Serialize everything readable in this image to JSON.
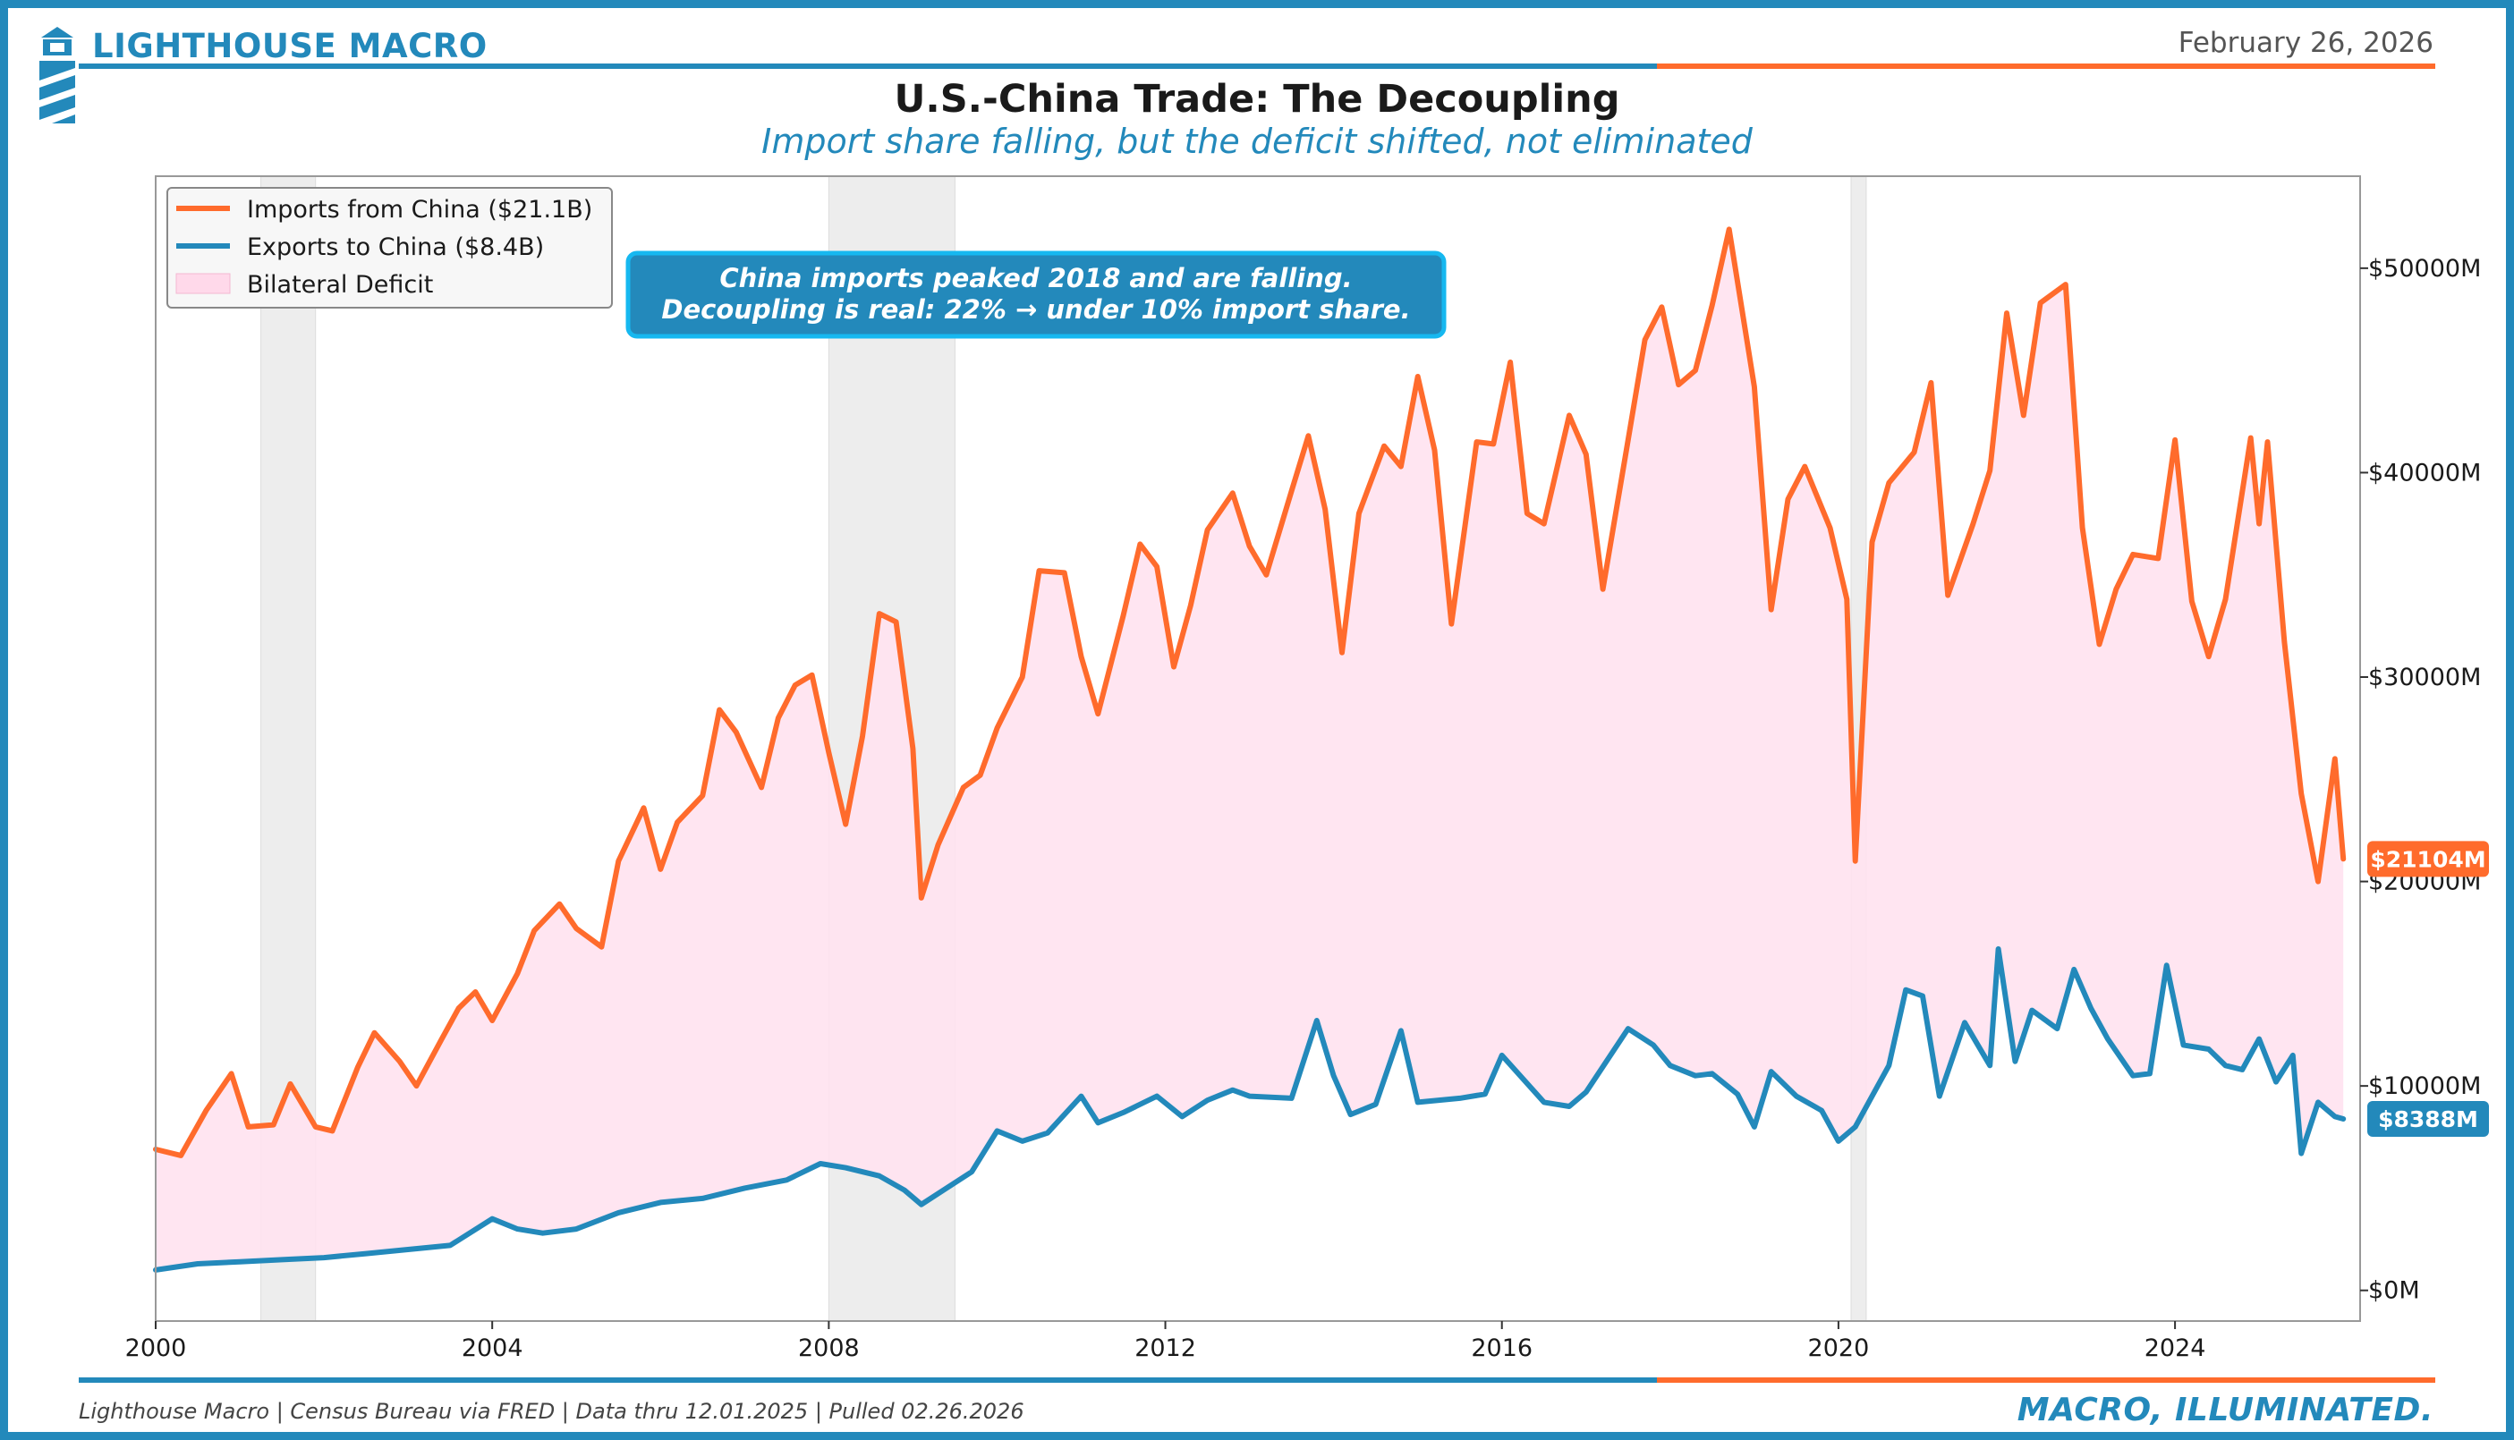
{
  "header": {
    "brand": "LIGHTHOUSE MACRO",
    "date": "February 26, 2026",
    "title": "U.S.-China Trade: The Decoupling",
    "subtitle": "Import share falling, but the deficit shifted, not eliminated"
  },
  "footer": {
    "source": "Lighthouse Macro | Census Bureau via FRED | Data thru 12.01.2025 | Pulled 02.26.2026",
    "tagline": "MACRO, ILLUMINATED."
  },
  "colors": {
    "brand_blue": "#2389bb",
    "brand_orange": "#ff6b2c",
    "deficit_fill": "#ffe2ef",
    "recession_band": "#e6e6e6",
    "annotation_bg": "#2389bb",
    "annotation_border": "#16b8f0"
  },
  "icons": {
    "logo": "lighthouse-icon"
  },
  "chart_data": {
    "type": "line",
    "title": "U.S.-China Trade: The Decoupling",
    "xlabel": "",
    "ylabel": "",
    "xlim": [
      2000,
      2026.2
    ],
    "ylim": [
      -1500,
      54500
    ],
    "x_ticks": [
      2000,
      2004,
      2008,
      2012,
      2016,
      2020,
      2024
    ],
    "y_ticks": [
      0,
      10000,
      20000,
      30000,
      40000,
      50000
    ],
    "y_tick_labels": [
      "$0M",
      "$10000M",
      "$20000M",
      "$30000M",
      "$40000M",
      "$50000M"
    ],
    "y_axis_side": "right",
    "grid": false,
    "legend_position": "top-left",
    "legend": [
      "Imports from China ($21.1B)",
      "Exports to China ($8.4B)",
      "Bilateral Deficit"
    ],
    "annotation": {
      "line1": "China imports peaked 2018 and are falling.",
      "line2": "Decoupling is real: 22% → under 10% import share.",
      "position": "top-left"
    },
    "recession_bands": [
      [
        2001.25,
        2001.9
      ],
      [
        2008.0,
        2009.5
      ],
      [
        2020.15,
        2020.33
      ]
    ],
    "end_labels": {
      "imports": "$21104M",
      "exports": "$8388M"
    },
    "series": [
      {
        "name": "Imports from China ($21.1B)",
        "color": "#ff6b2c",
        "x": [
          2000.0,
          2000.3,
          2000.6,
          2000.9,
          2001.1,
          2001.4,
          2001.6,
          2001.9,
          2002.1,
          2002.4,
          2002.6,
          2002.9,
          2003.1,
          2003.4,
          2003.6,
          2003.8,
          2004.0,
          2004.3,
          2004.5,
          2004.8,
          2005.0,
          2005.3,
          2005.5,
          2005.8,
          2006.0,
          2006.2,
          2006.5,
          2006.7,
          2006.9,
          2007.2,
          2007.4,
          2007.6,
          2007.8,
          2008.0,
          2008.2,
          2008.4,
          2008.6,
          2008.8,
          2009.0,
          2009.1,
          2009.3,
          2009.6,
          2009.8,
          2010.0,
          2010.3,
          2010.5,
          2010.8,
          2011.0,
          2011.2,
          2011.5,
          2011.7,
          2011.9,
          2012.1,
          2012.3,
          2012.5,
          2012.8,
          2013.0,
          2013.2,
          2013.5,
          2013.7,
          2013.9,
          2014.1,
          2014.3,
          2014.6,
          2014.8,
          2015.0,
          2015.2,
          2015.4,
          2015.7,
          2015.9,
          2016.1,
          2016.3,
          2016.5,
          2016.8,
          2017.0,
          2017.2,
          2017.5,
          2017.7,
          2017.9,
          2018.1,
          2018.3,
          2018.5,
          2018.7,
          2019.0,
          2019.2,
          2019.4,
          2019.6,
          2019.9,
          2020.1,
          2020.2,
          2020.4,
          2020.6,
          2020.9,
          2021.1,
          2021.3,
          2021.6,
          2021.8,
          2022.0,
          2022.2,
          2022.4,
          2022.7,
          2022.9,
          2023.1,
          2023.3,
          2023.5,
          2023.8,
          2024.0,
          2024.2,
          2024.4,
          2024.6,
          2024.9,
          2025.0,
          2025.1,
          2025.3,
          2025.5,
          2025.7,
          2025.9,
          2026.0
        ],
        "values": [
          6900,
          6600,
          8800,
          10600,
          8000,
          8100,
          10100,
          8000,
          7800,
          10900,
          12600,
          11200,
          10000,
          12300,
          13800,
          14600,
          13200,
          15500,
          17600,
          18900,
          17700,
          16800,
          21000,
          23600,
          20600,
          22900,
          24200,
          28400,
          27300,
          24600,
          28000,
          29600,
          30100,
          26300,
          22800,
          27100,
          33100,
          32700,
          26500,
          19200,
          21800,
          24600,
          25200,
          27500,
          30000,
          35200,
          35100,
          31000,
          28200,
          33000,
          36500,
          35400,
          30500,
          33500,
          37200,
          39000,
          36400,
          35000,
          39100,
          41800,
          38200,
          31200,
          38000,
          41300,
          40300,
          44700,
          41100,
          32600,
          41500,
          41400,
          45400,
          38000,
          37500,
          42800,
          40900,
          34300,
          41600,
          46500,
          48100,
          44300,
          45000,
          48200,
          51900,
          44200,
          33300,
          38700,
          40300,
          37300,
          33800,
          21000,
          36600,
          39500,
          41000,
          44400,
          34000,
          37500,
          40100,
          47800,
          42800,
          48300,
          49200,
          37300,
          31600,
          34300,
          36000,
          35800,
          41600,
          33700,
          31000,
          33800,
          41700,
          37500,
          41500,
          31700,
          24300,
          20000,
          26000,
          21104
        ]
      },
      {
        "name": "Exports to China ($8.4B)",
        "color": "#2389bb",
        "x": [
          2000.0,
          2000.5,
          2001.0,
          2001.5,
          2002.0,
          2002.5,
          2003.0,
          2003.5,
          2004.0,
          2004.3,
          2004.6,
          2005.0,
          2005.5,
          2006.0,
          2006.5,
          2007.0,
          2007.5,
          2007.9,
          2008.2,
          2008.6,
          2008.9,
          2009.1,
          2009.4,
          2009.7,
          2010.0,
          2010.3,
          2010.6,
          2011.0,
          2011.2,
          2011.5,
          2011.9,
          2012.2,
          2012.5,
          2012.8,
          2013.0,
          2013.5,
          2013.8,
          2014.0,
          2014.2,
          2014.5,
          2014.8,
          2015.0,
          2015.5,
          2015.8,
          2016.0,
          2016.5,
          2016.8,
          2017.0,
          2017.5,
          2017.8,
          2018.0,
          2018.3,
          2018.5,
          2018.8,
          2019.0,
          2019.2,
          2019.5,
          2019.8,
          2020.0,
          2020.2,
          2020.4,
          2020.6,
          2020.8,
          2021.0,
          2021.2,
          2021.5,
          2021.8,
          2021.9,
          2022.1,
          2022.3,
          2022.6,
          2022.8,
          2023.0,
          2023.2,
          2023.5,
          2023.7,
          2023.9,
          2024.1,
          2024.4,
          2024.6,
          2024.8,
          2025.0,
          2025.2,
          2025.4,
          2025.5,
          2025.7,
          2025.9,
          2026.0
        ],
        "values": [
          1000,
          1300,
          1400,
          1500,
          1600,
          1800,
          2000,
          2200,
          3500,
          3000,
          2800,
          3000,
          3800,
          4300,
          4500,
          5000,
          5400,
          6200,
          6000,
          5600,
          4900,
          4200,
          5000,
          5800,
          7800,
          7300,
          7700,
          9500,
          8200,
          8700,
          9500,
          8500,
          9300,
          9800,
          9500,
          9400,
          13200,
          10500,
          8600,
          9100,
          12700,
          9200,
          9400,
          9600,
          11500,
          9200,
          9000,
          9700,
          12800,
          12000,
          11000,
          10500,
          10600,
          9600,
          8000,
          10700,
          9500,
          8800,
          7300,
          8000,
          9500,
          11000,
          14700,
          14400,
          9500,
          13100,
          11000,
          16700,
          11200,
          13700,
          12800,
          15700,
          13800,
          12300,
          10500,
          10600,
          15900,
          12000,
          11800,
          11000,
          10800,
          12300,
          10200,
          11500,
          6700,
          9200,
          8500,
          8388
        ]
      }
    ]
  }
}
